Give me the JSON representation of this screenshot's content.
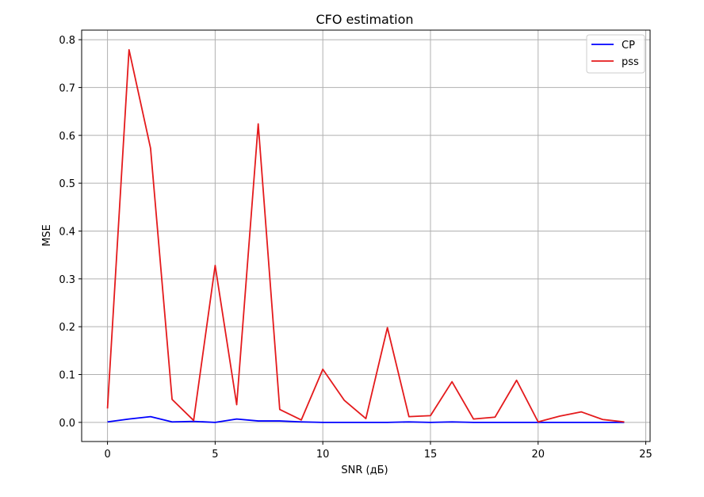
{
  "chart_data": {
    "type": "line",
    "title": "CFO estimation",
    "xlabel": "SNR (дБ)",
    "ylabel": "MSE",
    "xlim": [
      -1.2,
      25.2
    ],
    "ylim": [
      -0.04,
      0.82
    ],
    "xticks": [
      0,
      5,
      10,
      15,
      20,
      25
    ],
    "yticks": [
      0.0,
      0.1,
      0.2,
      0.3,
      0.4,
      0.5,
      0.6,
      0.7,
      0.8
    ],
    "grid": true,
    "legend_position": "top-right",
    "x": [
      0,
      1,
      2,
      3,
      4,
      5,
      6,
      7,
      8,
      9,
      10,
      11,
      12,
      13,
      14,
      15,
      16,
      17,
      18,
      19,
      20,
      21,
      22,
      23,
      24
    ],
    "series": [
      {
        "name": "CP",
        "color": "#0000ff",
        "values": [
          0.001,
          0.007,
          0.012,
          0.001,
          0.002,
          0.0,
          0.007,
          0.003,
          0.003,
          0.001,
          0.0,
          0.0,
          0.0,
          0.0,
          0.001,
          0.0,
          0.001,
          0.0,
          0.0,
          0.0,
          0.0,
          0.0,
          0.0,
          0.0,
          0.0
        ]
      },
      {
        "name": "pss",
        "color": "#e41a1c",
        "values": [
          0.029,
          0.779,
          0.573,
          0.048,
          0.004,
          0.328,
          0.037,
          0.624,
          0.027,
          0.005,
          0.111,
          0.046,
          0.008,
          0.198,
          0.012,
          0.014,
          0.085,
          0.007,
          0.011,
          0.088,
          0.001,
          0.013,
          0.022,
          0.006,
          0.001
        ]
      }
    ]
  }
}
